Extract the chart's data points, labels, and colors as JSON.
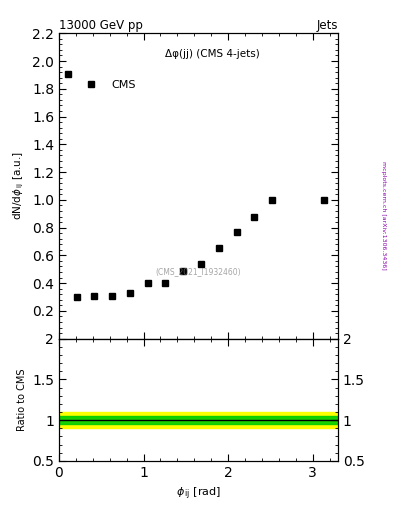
{
  "title": "13000 GeV pp",
  "title_right": "Jets",
  "annotation": "Δφ(jj) (CMS 4-jets)",
  "watermark": "(CMS_2021_I1932460)",
  "ylabel_main": "dN/dφ_rm_ij [a.u.]",
  "ylabel_ratio": "Ratio to CMS",
  "xlabel": "φ_rm_ij [rad]",
  "xlim": [
    0,
    3.3
  ],
  "ylim_main": [
    0.0,
    2.2
  ],
  "ylim_ratio": [
    0.5,
    2.0
  ],
  "cms_x": [
    0.105,
    0.21,
    0.42,
    0.63,
    0.84,
    1.05,
    1.26,
    1.47,
    1.68,
    1.89,
    2.1,
    2.31,
    2.52,
    3.14
  ],
  "cms_y": [
    1.91,
    0.3,
    0.31,
    0.31,
    0.33,
    0.4,
    0.4,
    0.49,
    0.54,
    0.65,
    0.77,
    0.88,
    1.0,
    1.0
  ],
  "cms_marker": "s",
  "cms_color": "#000000",
  "cms_markersize": 5,
  "band_green_upper": 1.05,
  "band_green_lower": 0.95,
  "band_yellow_upper": 1.1,
  "band_yellow_lower": 0.9,
  "ratio_line": 1.0,
  "green_color": "#00CC00",
  "yellow_color": "#FFFF00",
  "right_axis_label": "mcplots.cern.ch [arXiv:1306.3436]",
  "legend_label": "CMS",
  "yticks_main": [
    0.2,
    0.4,
    0.6,
    0.8,
    1.0,
    1.2,
    1.4,
    1.6,
    1.8,
    2.0,
    2.2
  ],
  "xticks": [
    0,
    1,
    2,
    3
  ],
  "yticks_ratio": [
    0.5,
    1.0,
    1.5,
    2.0
  ]
}
